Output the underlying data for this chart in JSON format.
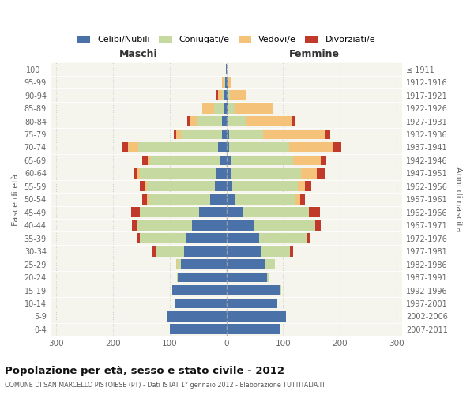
{
  "age_groups": [
    "100+",
    "95-99",
    "90-94",
    "85-89",
    "80-84",
    "75-79",
    "70-74",
    "65-69",
    "60-64",
    "55-59",
    "50-54",
    "45-49",
    "40-44",
    "35-39",
    "30-34",
    "25-29",
    "20-24",
    "15-19",
    "10-14",
    "5-9",
    "0-4"
  ],
  "birth_years": [
    "≤ 1911",
    "1912-1916",
    "1917-1921",
    "1922-1926",
    "1927-1931",
    "1932-1936",
    "1937-1941",
    "1942-1946",
    "1947-1951",
    "1952-1956",
    "1957-1961",
    "1962-1966",
    "1967-1971",
    "1972-1976",
    "1977-1981",
    "1982-1986",
    "1987-1991",
    "1992-1996",
    "1997-2001",
    "2002-2006",
    "2007-2011"
  ],
  "maschi_celibi": [
    1,
    2,
    3,
    4,
    7,
    8,
    15,
    12,
    17,
    20,
    28,
    48,
    60,
    72,
    75,
    80,
    85,
    95,
    90,
    105,
    100
  ],
  "maschi_coniugati": [
    0,
    2,
    4,
    18,
    45,
    72,
    140,
    122,
    135,
    120,
    108,
    105,
    98,
    80,
    50,
    7,
    2,
    1,
    0,
    0,
    0
  ],
  "maschi_vedovi": [
    0,
    3,
    8,
    20,
    12,
    8,
    18,
    4,
    4,
    4,
    4,
    0,
    0,
    0,
    0,
    2,
    0,
    0,
    0,
    0,
    0
  ],
  "maschi_divorziati": [
    0,
    0,
    2,
    0,
    5,
    5,
    10,
    10,
    8,
    8,
    8,
    15,
    8,
    5,
    5,
    0,
    0,
    0,
    0,
    0,
    0
  ],
  "femmine_nubili": [
    1,
    2,
    2,
    4,
    4,
    5,
    5,
    8,
    9,
    11,
    14,
    28,
    48,
    58,
    62,
    68,
    72,
    95,
    90,
    105,
    95
  ],
  "femmine_coniugate": [
    0,
    2,
    4,
    12,
    30,
    60,
    105,
    110,
    122,
    115,
    108,
    118,
    108,
    85,
    50,
    18,
    4,
    2,
    0,
    0,
    0
  ],
  "femmine_vedove": [
    0,
    5,
    28,
    65,
    82,
    110,
    78,
    48,
    28,
    13,
    8,
    0,
    0,
    0,
    0,
    0,
    0,
    0,
    0,
    0,
    0
  ],
  "femmine_divorziate": [
    0,
    0,
    0,
    0,
    5,
    8,
    15,
    10,
    14,
    11,
    9,
    19,
    11,
    5,
    5,
    0,
    0,
    0,
    0,
    0,
    0
  ],
  "colors": {
    "celibi": "#4a72a8",
    "coniugati": "#c5d9a0",
    "vedovi": "#f5c27a",
    "divorziati": "#c0392b"
  },
  "title": "Popolazione per età, sesso e stato civile - 2012",
  "subtitle": "COMUNE DI SAN MARCELLO PISTOIESE (PT) - Dati ISTAT 1° gennaio 2012 - Elaborazione TUTTITALIA.IT",
  "header_left": "Maschi",
  "header_right": "Femmine",
  "ylabel_left": "Fasce di età",
  "ylabel_right": "Anni di nascita",
  "xlim": 310,
  "legend_labels": [
    "Celibi/Nubili",
    "Coniugati/e",
    "Vedovi/e",
    "Divorziati/e"
  ],
  "bg_color": "#ffffff",
  "plot_bg": "#f5f5ee",
  "grid_color": "#cccccc"
}
